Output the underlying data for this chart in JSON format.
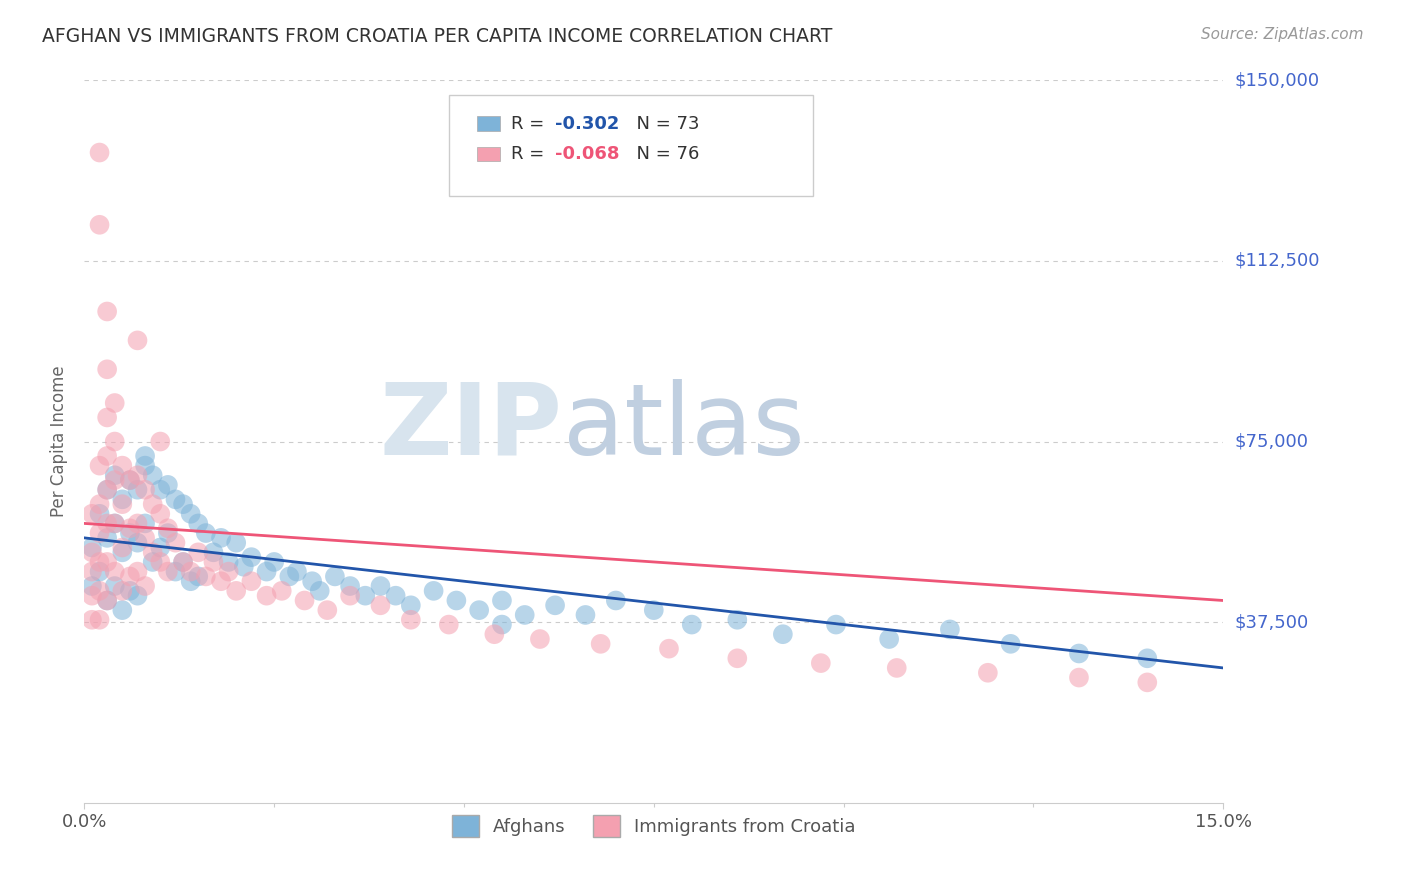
{
  "title": "AFGHAN VS IMMIGRANTS FROM CROATIA PER CAPITA INCOME CORRELATION CHART",
  "source": "Source: ZipAtlas.com",
  "ylabel": "Per Capita Income",
  "xlim": [
    0.0,
    0.15
  ],
  "ylim": [
    0,
    150000
  ],
  "yticks": [
    0,
    37500,
    75000,
    112500,
    150000
  ],
  "ytick_labels": [
    "",
    "$37,500",
    "$75,000",
    "$112,500",
    "$150,000"
  ],
  "xtick_labels": [
    "0.0%",
    "15.0%"
  ],
  "blue_color": "#7EB3D8",
  "pink_color": "#F4A0B0",
  "blue_line_color": "#2255AA",
  "pink_line_color": "#EE5577",
  "title_color": "#333333",
  "axis_label_color": "#666666",
  "ytick_color": "#4466CC",
  "grid_color": "#CCCCCC",
  "legend_label_blue": "Afghans",
  "legend_label_pink": "Immigrants from Croatia",
  "blue_reg": [
    55000,
    28000
  ],
  "pink_reg": [
    58000,
    42000
  ],
  "blue_scatter_x": [
    0.001,
    0.001,
    0.002,
    0.002,
    0.003,
    0.003,
    0.003,
    0.004,
    0.004,
    0.004,
    0.005,
    0.005,
    0.005,
    0.006,
    0.006,
    0.006,
    0.007,
    0.007,
    0.007,
    0.008,
    0.008,
    0.009,
    0.009,
    0.01,
    0.01,
    0.011,
    0.011,
    0.012,
    0.012,
    0.013,
    0.013,
    0.014,
    0.014,
    0.015,
    0.015,
    0.016,
    0.017,
    0.018,
    0.019,
    0.02,
    0.021,
    0.022,
    0.024,
    0.025,
    0.027,
    0.028,
    0.03,
    0.031,
    0.033,
    0.035,
    0.037,
    0.039,
    0.041,
    0.043,
    0.046,
    0.049,
    0.052,
    0.055,
    0.058,
    0.062,
    0.066,
    0.07,
    0.075,
    0.08,
    0.086,
    0.092,
    0.099,
    0.106,
    0.114,
    0.122,
    0.131,
    0.14,
    0.008,
    0.055
  ],
  "blue_scatter_y": [
    53000,
    45000,
    60000,
    48000,
    65000,
    55000,
    42000,
    68000,
    58000,
    45000,
    63000,
    52000,
    40000,
    67000,
    56000,
    44000,
    65000,
    54000,
    43000,
    70000,
    58000,
    68000,
    50000,
    65000,
    53000,
    66000,
    56000,
    63000,
    48000,
    62000,
    50000,
    60000,
    46000,
    58000,
    47000,
    56000,
    52000,
    55000,
    50000,
    54000,
    49000,
    51000,
    48000,
    50000,
    47000,
    48000,
    46000,
    44000,
    47000,
    45000,
    43000,
    45000,
    43000,
    41000,
    44000,
    42000,
    40000,
    42000,
    39000,
    41000,
    39000,
    42000,
    40000,
    37000,
    38000,
    35000,
    37000,
    34000,
    36000,
    33000,
    31000,
    30000,
    72000,
    37000
  ],
  "pink_scatter_x": [
    0.001,
    0.001,
    0.001,
    0.001,
    0.001,
    0.002,
    0.002,
    0.002,
    0.002,
    0.002,
    0.002,
    0.003,
    0.003,
    0.003,
    0.003,
    0.003,
    0.003,
    0.004,
    0.004,
    0.004,
    0.004,
    0.005,
    0.005,
    0.005,
    0.005,
    0.006,
    0.006,
    0.006,
    0.007,
    0.007,
    0.007,
    0.008,
    0.008,
    0.008,
    0.009,
    0.009,
    0.01,
    0.01,
    0.011,
    0.011,
    0.012,
    0.013,
    0.014,
    0.015,
    0.016,
    0.017,
    0.018,
    0.019,
    0.02,
    0.022,
    0.024,
    0.026,
    0.029,
    0.032,
    0.035,
    0.039,
    0.043,
    0.048,
    0.054,
    0.06,
    0.068,
    0.077,
    0.086,
    0.097,
    0.107,
    0.119,
    0.131,
    0.14,
    0.002,
    0.002,
    0.003,
    0.003,
    0.004,
    0.007,
    0.01
  ],
  "pink_scatter_y": [
    60000,
    52000,
    48000,
    43000,
    38000,
    70000,
    62000,
    56000,
    50000,
    44000,
    38000,
    80000,
    72000,
    65000,
    58000,
    50000,
    42000,
    75000,
    67000,
    58000,
    48000,
    70000,
    62000,
    53000,
    44000,
    67000,
    57000,
    47000,
    68000,
    58000,
    48000,
    65000,
    55000,
    45000,
    62000,
    52000,
    60000,
    50000,
    57000,
    48000,
    54000,
    50000,
    48000,
    52000,
    47000,
    50000,
    46000,
    48000,
    44000,
    46000,
    43000,
    44000,
    42000,
    40000,
    43000,
    41000,
    38000,
    37000,
    35000,
    34000,
    33000,
    32000,
    30000,
    29000,
    28000,
    27000,
    26000,
    25000,
    135000,
    120000,
    102000,
    90000,
    83000,
    96000,
    75000
  ]
}
